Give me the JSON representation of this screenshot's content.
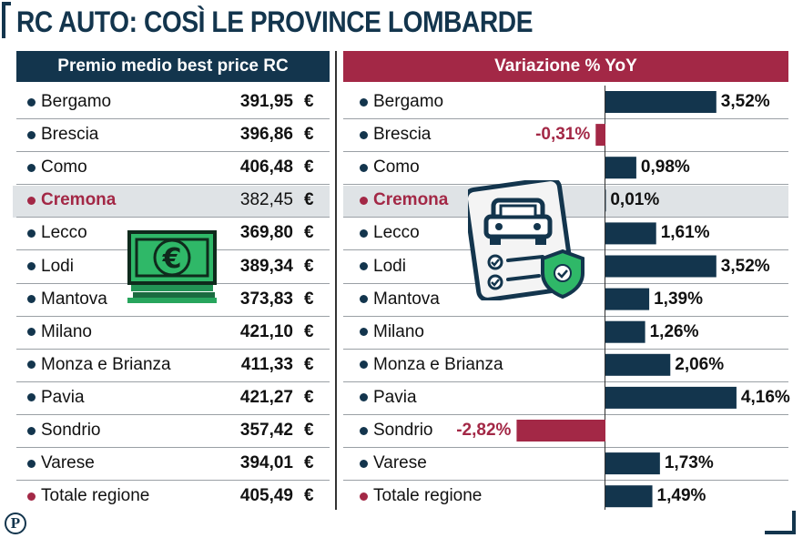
{
  "title": "RC AUTO: COSÌ LE PROVINCE LOMBARDE",
  "left_header": "Premio medio best price RC",
  "right_header": "Variazione % YoY",
  "currency_symbol": "€",
  "highlight_row": "Cremona",
  "colors": {
    "navy": "#13354d",
    "crimson": "#a32846",
    "highlight": "#dfe3e6",
    "money_green": "#27b463"
  },
  "rows": [
    {
      "name": "Bergamo",
      "premium": "391,95",
      "change": "3,52%"
    },
    {
      "name": "Brescia",
      "premium": "396,86",
      "change": "-0,31%"
    },
    {
      "name": "Como",
      "premium": "406,48",
      "change": "0,98%"
    },
    {
      "name": "Cremona",
      "premium": "382,45",
      "change": "0,01%"
    },
    {
      "name": "Lecco",
      "premium": "369,80",
      "change": "1,61%"
    },
    {
      "name": "Lodi",
      "premium": "389,34",
      "change": "3,52%"
    },
    {
      "name": "Mantova",
      "premium": "373,83",
      "change": "1,39%"
    },
    {
      "name": "Milano",
      "premium": "421,10",
      "change": "1,26%"
    },
    {
      "name": "Monza e Brianza",
      "premium": "411,33",
      "change": "2,06%"
    },
    {
      "name": "Pavia",
      "premium": "421,27",
      "change": "4,16%"
    },
    {
      "name": "Sondrio",
      "premium": "357,42",
      "change": "-2,82%"
    },
    {
      "name": "Varese",
      "premium": "394,01",
      "change": "1,73%"
    },
    {
      "name": "Totale regione",
      "premium": "405,49",
      "change": "1,49%"
    }
  ],
  "chart_data": {
    "type": "bar",
    "title": "Variazione % YoY",
    "categories": [
      "Bergamo",
      "Brescia",
      "Como",
      "Cremona",
      "Lecco",
      "Lodi",
      "Mantova",
      "Milano",
      "Monza e Brianza",
      "Pavia",
      "Sondrio",
      "Varese",
      "Totale regione"
    ],
    "values": [
      3.52,
      -0.31,
      0.98,
      0.01,
      1.61,
      3.52,
      1.39,
      1.26,
      2.06,
      4.16,
      -2.82,
      1.73,
      1.49
    ],
    "labels": [
      "3,52%",
      "-0,31%",
      "0,98%",
      "0,01%",
      "1,61%",
      "3,52%",
      "1,39%",
      "1,26%",
      "2,06%",
      "4,16%",
      "-2,82%",
      "1,73%",
      "1,49%"
    ],
    "premium_values": [
      391.95,
      396.86,
      406.48,
      382.45,
      369.8,
      389.34,
      373.83,
      421.1,
      411.33,
      421.27,
      357.42,
      394.01,
      405.49
    ],
    "premium_title": "Premio medio best price RC",
    "unit": "%"
  }
}
